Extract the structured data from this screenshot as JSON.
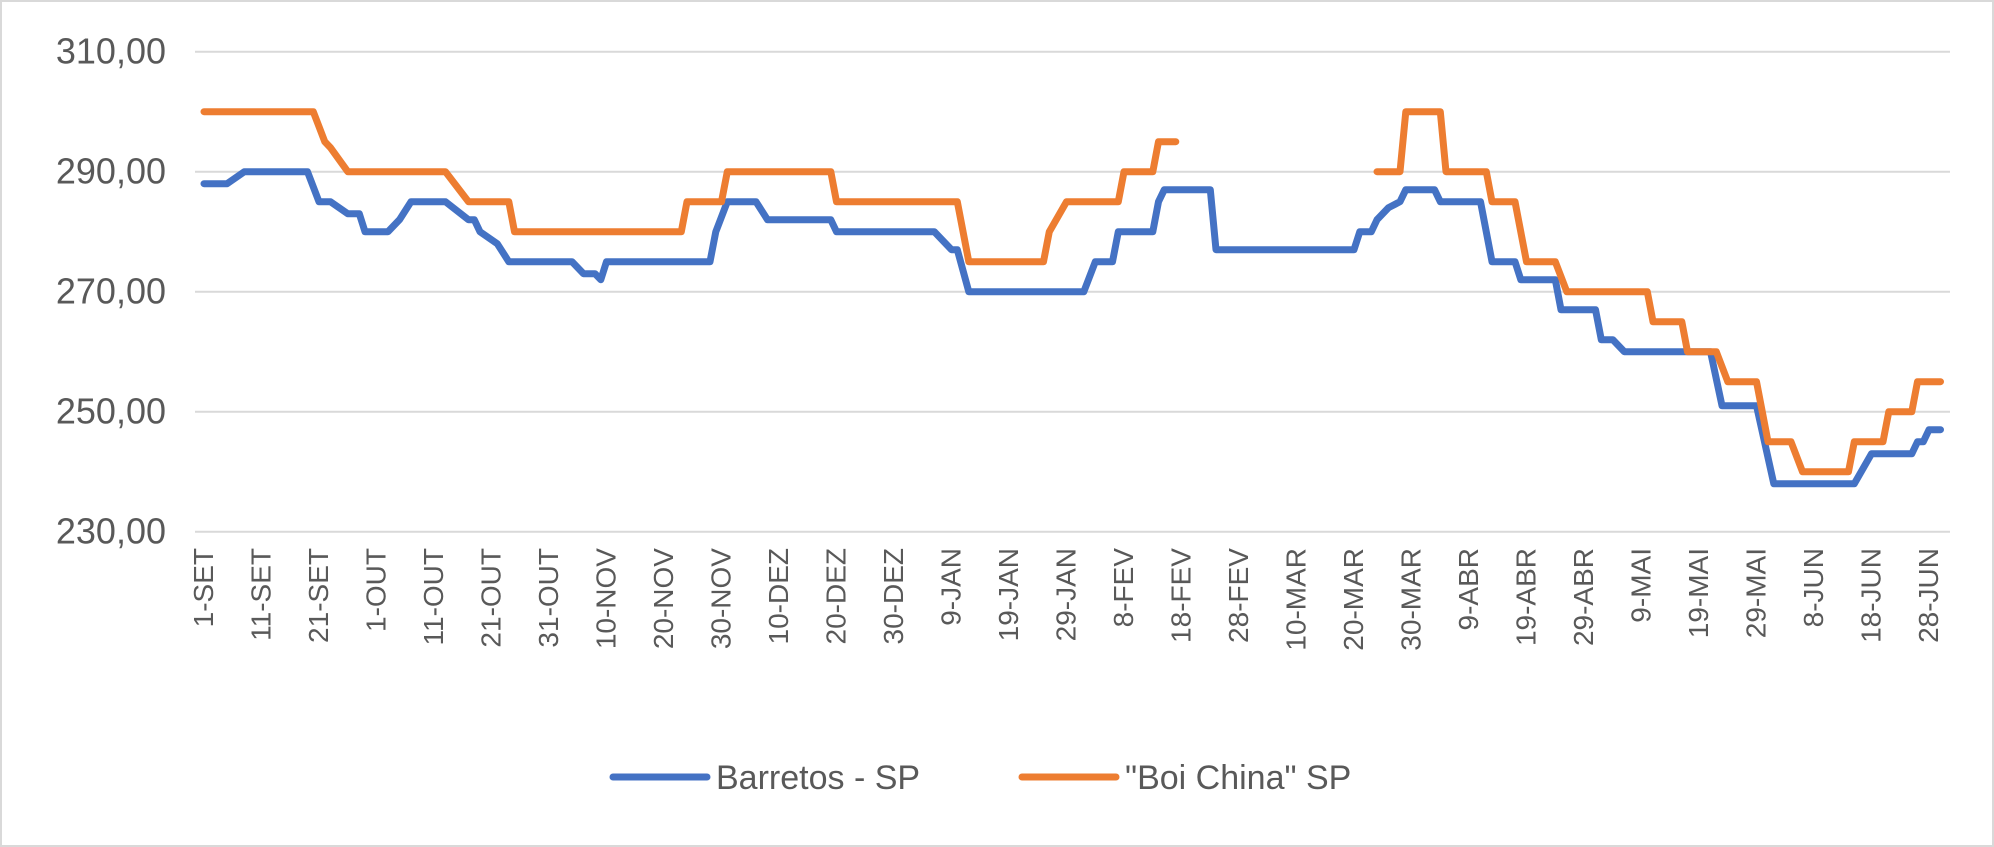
{
  "chart_data": {
    "type": "line",
    "title": "",
    "xlabel": "",
    "ylabel": "",
    "ylim": [
      230,
      310
    ],
    "y_ticks": [
      "230,00",
      "250,00",
      "270,00",
      "290,00",
      "310,00"
    ],
    "y_tick_values": [
      230,
      250,
      270,
      290,
      310
    ],
    "x_ticks": [
      "1-SET",
      "11-SET",
      "21-SET",
      "1-OUT",
      "11-OUT",
      "21-OUT",
      "31-OUT",
      "10-NOV",
      "20-NOV",
      "30-NOV",
      "10-DEZ",
      "20-DEZ",
      "30-DEZ",
      "9-JAN",
      "19-JAN",
      "29-JAN",
      "8-FEV",
      "18-FEV",
      "28-FEV",
      "10-MAR",
      "20-MAR",
      "30-MAR",
      "9-ABR",
      "19-ABR",
      "29-ABR",
      "9-MAI",
      "19-MAI",
      "29-MAI",
      "8-JUN",
      "18-JUN",
      "28-JUN"
    ],
    "grid": true,
    "legend_position": "bottom",
    "series": [
      {
        "name": "Barretos - SP",
        "color": "#4472C4",
        "points": [
          [
            "1-SET",
            288
          ],
          [
            "5-SET",
            288
          ],
          [
            "8-SET",
            290
          ],
          [
            "19-SET",
            290
          ],
          [
            "21-SET",
            285
          ],
          [
            "23-SET",
            285
          ],
          [
            "26-SET",
            283
          ],
          [
            "28-SET",
            283
          ],
          [
            "29-SET",
            280
          ],
          [
            "3-OUT",
            280
          ],
          [
            "5-OUT",
            282
          ],
          [
            "7-OUT",
            285
          ],
          [
            "13-OUT",
            285
          ],
          [
            "17-OUT",
            282
          ],
          [
            "18-OUT",
            282
          ],
          [
            "19-OUT",
            280
          ],
          [
            "22-OUT",
            278
          ],
          [
            "24-OUT",
            275
          ],
          [
            "4-NOV",
            275
          ],
          [
            "6-NOV",
            273
          ],
          [
            "8-NOV",
            273
          ],
          [
            "9-NOV",
            272
          ],
          [
            "10-NOV",
            275
          ],
          [
            "28-NOV",
            275
          ],
          [
            "29-NOV",
            280
          ],
          [
            "1-DEZ",
            285
          ],
          [
            "6-DEZ",
            285
          ],
          [
            "8-DEZ",
            282
          ],
          [
            "19-DEZ",
            282
          ],
          [
            "20-DEZ",
            280
          ],
          [
            "6-JAN",
            280
          ],
          [
            "9-JAN",
            277
          ],
          [
            "10-JAN",
            277
          ],
          [
            "12-JAN",
            270
          ],
          [
            "1-FEV",
            270
          ],
          [
            "3-FEV",
            275
          ],
          [
            "6-FEV",
            275
          ],
          [
            "7-FEV",
            280
          ],
          [
            "13-FEV",
            280
          ],
          [
            "14-FEV",
            285
          ],
          [
            "15-FEV",
            287
          ],
          [
            "23-FEV",
            287
          ],
          [
            "24-FEV",
            277
          ],
          [
            "20-MAR",
            277
          ],
          [
            "21-MAR",
            280
          ],
          [
            "23-MAR",
            280
          ],
          [
            "24-MAR",
            282
          ],
          [
            "26-MAR",
            284
          ],
          [
            "28-MAR",
            285
          ],
          [
            "29-MAR",
            287
          ],
          [
            "3-ABR",
            287
          ],
          [
            "4-ABR",
            285
          ],
          [
            "11-ABR",
            285
          ],
          [
            "13-ABR",
            275
          ],
          [
            "17-ABR",
            275
          ],
          [
            "18-ABR",
            272
          ],
          [
            "24-ABR",
            272
          ],
          [
            "25-ABR",
            267
          ],
          [
            "1-MAI",
            267
          ],
          [
            "2-MAI",
            262
          ],
          [
            "4-MAI",
            262
          ],
          [
            "6-MAI",
            260
          ],
          [
            "21-MAI",
            260
          ],
          [
            "23-MAI",
            251
          ],
          [
            "29-MAI",
            251
          ],
          [
            "1-JUN",
            238
          ],
          [
            "15-JUN",
            238
          ],
          [
            "18-JUN",
            243
          ],
          [
            "25-JUN",
            243
          ],
          [
            "26-JUN",
            245
          ],
          [
            "27-JUN",
            245
          ],
          [
            "28-JUN",
            247
          ],
          [
            "30-JUN",
            247
          ]
        ]
      },
      {
        "name": "\"Boi China\" SP",
        "color": "#ED7D31",
        "points": [
          [
            "1-SET",
            300
          ],
          [
            "20-SET",
            300
          ],
          [
            "22-SET",
            295
          ],
          [
            "23-SET",
            294
          ],
          [
            "26-SET",
            290
          ],
          [
            "13-OUT",
            290
          ],
          [
            "17-OUT",
            285
          ],
          [
            "24-OUT",
            285
          ],
          [
            "25-OUT",
            280
          ],
          [
            "23-NOV",
            280
          ],
          [
            "24-NOV",
            285
          ],
          [
            "30-NOV",
            285
          ],
          [
            "1-DEZ",
            290
          ],
          [
            "19-DEZ",
            290
          ],
          [
            "20-DEZ",
            285
          ],
          [
            "10-JAN",
            285
          ],
          [
            "12-JAN",
            275
          ],
          [
            "25-JAN",
            275
          ],
          [
            "26-JAN",
            280
          ],
          [
            "29-JAN",
            285
          ],
          [
            "7-FEV",
            285
          ],
          [
            "8-FEV",
            290
          ],
          [
            "13-FEV",
            290
          ],
          [
            "14-FEV",
            295
          ],
          [
            "17-FEV",
            295
          ],
          [
            "18-FEV",
            null
          ],
          [
            "24-MAR",
            290
          ],
          [
            "28-MAR",
            290
          ],
          [
            "29-MAR",
            300
          ],
          [
            "4-ABR",
            300
          ],
          [
            "5-ABR",
            290
          ],
          [
            "12-ABR",
            290
          ],
          [
            "13-ABR",
            285
          ],
          [
            "17-ABR",
            285
          ],
          [
            "19-ABR",
            275
          ],
          [
            "24-ABR",
            275
          ],
          [
            "26-ABR",
            270
          ],
          [
            "10-MAI",
            270
          ],
          [
            "11-MAI",
            265
          ],
          [
            "16-MAI",
            265
          ],
          [
            "17-MAI",
            260
          ],
          [
            "22-MAI",
            260
          ],
          [
            "24-MAI",
            255
          ],
          [
            "29-MAI",
            255
          ],
          [
            "31-MAI",
            245
          ],
          [
            "4-JUN",
            245
          ],
          [
            "6-JUN",
            240
          ],
          [
            "14-JUN",
            240
          ],
          [
            "15-JUN",
            245
          ],
          [
            "20-JUN",
            245
          ],
          [
            "21-JUN",
            250
          ],
          [
            "25-JUN",
            250
          ],
          [
            "26-JUN",
            255
          ],
          [
            "30-JUN",
            255
          ]
        ]
      }
    ]
  },
  "legend": {
    "items": [
      {
        "label": "Barretos - SP",
        "color": "#4472C4"
      },
      {
        "label": "\"Boi China\" SP",
        "color": "#ED7D31"
      }
    ]
  },
  "colors": {
    "grid": "#D9D9D9",
    "text": "#595959",
    "border": "#D9D9D9"
  }
}
